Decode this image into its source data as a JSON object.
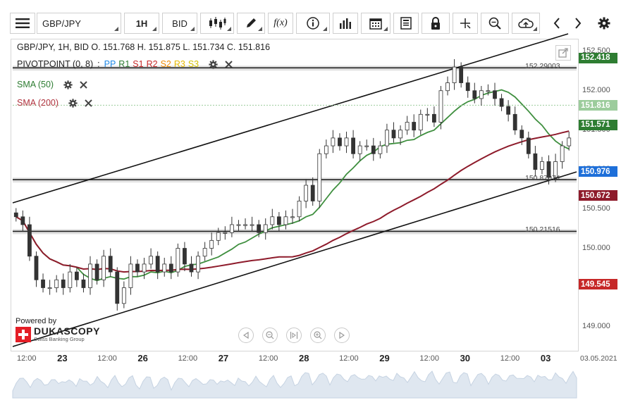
{
  "toolbar": {
    "symbol": "GBP/JPY",
    "timeframe": "1H",
    "price_side": "BID",
    "fx_label": "f(x)"
  },
  "legend": {
    "ohlc": "GBP/JPY, 1H, BID   O. 151.768 H. 151.875 L. 151.734 C. 151.816",
    "pivot_name": "PIVOTPOINT (0, 8)",
    "pivot_levels": [
      {
        "label": "PP",
        "color": "#1e88e5"
      },
      {
        "label": "R1",
        "color": "#2e7d32"
      },
      {
        "label": "S1",
        "color": "#c62828"
      },
      {
        "label": "R2",
        "color": "#c62828"
      },
      {
        "label": "S2",
        "color": "#ef8a00"
      },
      {
        "label": "R3",
        "color": "#e6b800"
      },
      {
        "label": "S3",
        "color": "#d4c000"
      }
    ],
    "sma50": "SMA (50)",
    "sma200": "SMA (200)"
  },
  "price_axis": {
    "ticks": [
      "152.500",
      "152.000",
      "151.500",
      "151.000",
      "150.500",
      "150.000",
      "149.000"
    ]
  },
  "price_tags": [
    {
      "value": "152.418",
      "color": "#2e7d32"
    },
    {
      "value": "151.816",
      "color": "#9ccc9c"
    },
    {
      "value": "151.571",
      "color": "#2e7d32"
    },
    {
      "value": "150.976",
      "color": "#1e6fd9"
    },
    {
      "value": "150.672",
      "color": "#8e1b2b"
    },
    {
      "value": "149.545",
      "color": "#c62828"
    }
  ],
  "pivot_line_labels": [
    "152.29003",
    "150.87074",
    "150.21516"
  ],
  "time_axis": {
    "labels": [
      {
        "text": "12:00",
        "major": false
      },
      {
        "text": "23",
        "major": true
      },
      {
        "text": "12:00",
        "major": false
      },
      {
        "text": "26",
        "major": true
      },
      {
        "text": "12:00",
        "major": false
      },
      {
        "text": "27",
        "major": true
      },
      {
        "text": "12:00",
        "major": false
      },
      {
        "text": "28",
        "major": true
      },
      {
        "text": "12:00",
        "major": false
      },
      {
        "text": "29",
        "major": true
      },
      {
        "text": "12:00",
        "major": false
      },
      {
        "text": "30",
        "major": true
      },
      {
        "text": "12:00",
        "major": false
      },
      {
        "text": "03",
        "major": true
      }
    ],
    "current_date": "03.05.2021"
  },
  "branding": {
    "powered_by": "Powered by",
    "name": "DUKASCOPY",
    "tagline": "Swiss Banking Group"
  },
  "chart_data": {
    "type": "candlestick",
    "instrument": "GBP/JPY",
    "interval": "1H",
    "ylim": [
      148.7,
      152.65
    ],
    "close_series": [
      150.4,
      150.3,
      149.9,
      149.6,
      149.5,
      149.5,
      149.6,
      149.5,
      149.7,
      149.6,
      149.5,
      149.8,
      149.6,
      149.9,
      149.7,
      149.3,
      149.5,
      149.8,
      149.7,
      149.8,
      149.9,
      149.7,
      149.8,
      149.7,
      150.0,
      149.8,
      149.7,
      149.9,
      150.0,
      150.1,
      150.2,
      150.2,
      150.3,
      150.3,
      150.3,
      150.3,
      150.2,
      150.3,
      150.4,
      150.3,
      150.4,
      150.4,
      150.6,
      150.8,
      150.6,
      151.2,
      151.3,
      151.4,
      151.3,
      151.4,
      151.2,
      151.3,
      151.3,
      151.2,
      151.3,
      151.5,
      151.4,
      151.5,
      151.6,
      151.5,
      151.7,
      151.7,
      151.6,
      152.0,
      152.1,
      152.3,
      152.1,
      152.0,
      151.9,
      152.0,
      152.0,
      151.9,
      151.8,
      151.7,
      151.5,
      151.4,
      151.2,
      151.0,
      151.1,
      150.9,
      151.1,
      151.3,
      151.4
    ]
  }
}
